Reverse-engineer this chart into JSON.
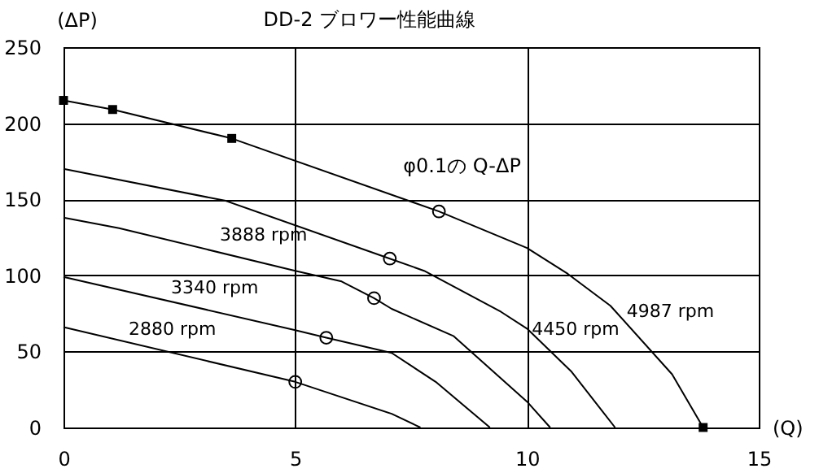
{
  "chart_data": {
    "type": "line",
    "title": "DD-2 ブロワー性能曲線",
    "xlabel": "(Q)",
    "ylabel": "(ΔP)",
    "xlim": [
      0,
      15
    ],
    "xticks": [
      0,
      5,
      10,
      15
    ],
    "ylim": [
      0,
      250
    ],
    "yticks": [
      0,
      50,
      100,
      150,
      200,
      250
    ],
    "grid": true,
    "marker": "none",
    "line_style": "solid",
    "annotations": [
      {
        "text": "φ0.1の Q-ΔP",
        "x": 8.1,
        "y": 142
      }
    ],
    "series": [
      {
        "name": "2880 rpm",
        "color": "#000000",
        "x": [
          0,
          5,
          7.08,
          7.7
        ],
        "values": [
          66,
          30,
          9,
          0
        ]
      },
      {
        "name": "3340 rpm",
        "color": "#000000",
        "x": [
          0,
          5,
          5.67,
          7.08,
          8.03,
          9.2
        ],
        "values": [
          99,
          64,
          59,
          49,
          30,
          0
        ]
      },
      {
        "name": "3888 rpm",
        "color": "#000000",
        "x": [
          0,
          1.2,
          5,
          6,
          6.7,
          7.08,
          8.42,
          10,
          10.5
        ],
        "values": [
          138,
          131,
          103,
          96,
          85,
          78,
          60,
          17,
          0
        ]
      },
      {
        "name": "4450 rpm",
        "color": "#000000",
        "x": [
          0,
          3.5,
          7.04,
          7.78,
          9.44,
          10,
          10.95,
          11.9
        ],
        "values": [
          170,
          149,
          111,
          103,
          76,
          65,
          37,
          0
        ]
      },
      {
        "name": "4987 rpm",
        "color": "#000000",
        "x": [
          0,
          1.06,
          3.63,
          8.1,
          10,
          10.88,
          11.8,
          13.13,
          13.8
        ],
        "values": [
          215,
          209,
          190,
          142,
          118,
          101,
          80,
          35,
          0
        ]
      },
      {
        "type": "scatter",
        "marker": "square",
        "color": "#000000",
        "x": [
          0,
          1.06,
          3.63,
          13.8
        ],
        "values": [
          215,
          209,
          190,
          0
        ]
      },
      {
        "type": "scatter",
        "marker": "circle",
        "color": "#000000",
        "x": [
          5,
          5.67,
          6.7,
          7.04,
          8.1
        ],
        "values": [
          30,
          59,
          85,
          111,
          142
        ]
      }
    ]
  }
}
